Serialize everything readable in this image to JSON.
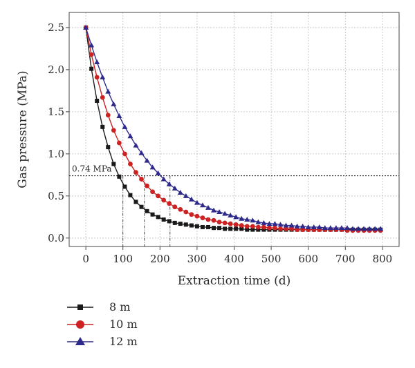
{
  "chart_data": {
    "type": "line",
    "xlabel": "Extraction time (d)",
    "ylabel": "Gas pressure (MPa)",
    "xlim": [
      -45,
      845
    ],
    "ylim": [
      -0.1,
      2.68
    ],
    "xticks": [
      "0",
      "100",
      "200",
      "300",
      "400",
      "500",
      "600",
      "700",
      "800"
    ],
    "yticks": [
      "0.0",
      "0.5",
      "1.0",
      "1.5",
      "2.0",
      "2.5"
    ],
    "grid": true,
    "legend_position": "below",
    "x": [
      0,
      15,
      30,
      45,
      60,
      75,
      90,
      105,
      120,
      135,
      150,
      165,
      180,
      195,
      210,
      225,
      240,
      255,
      270,
      285,
      300,
      315,
      330,
      345,
      360,
      375,
      390,
      405,
      420,
      435,
      450,
      465,
      480,
      495,
      510,
      525,
      540,
      555,
      570,
      585,
      600,
      615,
      630,
      645,
      660,
      675,
      690,
      705,
      720,
      735,
      750,
      765,
      780,
      795
    ],
    "series": [
      {
        "name": "8 m",
        "marker": "square",
        "color": "#1a1a1a",
        "values": [
          2.5,
          2.01,
          1.63,
          1.32,
          1.08,
          0.88,
          0.73,
          0.61,
          0.51,
          0.43,
          0.37,
          0.32,
          0.28,
          0.25,
          0.22,
          0.2,
          0.18,
          0.17,
          0.16,
          0.15,
          0.14,
          0.13,
          0.13,
          0.12,
          0.12,
          0.11,
          0.11,
          0.11,
          0.11,
          0.1,
          0.1,
          0.1,
          0.1,
          0.1,
          0.1,
          0.1,
          0.1,
          0.1,
          0.1,
          0.1,
          0.1,
          0.1,
          0.1,
          0.1,
          0.1,
          0.1,
          0.1,
          0.1,
          0.1,
          0.1,
          0.1,
          0.1,
          0.1,
          0.1
        ]
      },
      {
        "name": "10 m",
        "marker": "circle",
        "color": "#cc2222",
        "values": [
          2.5,
          2.18,
          1.91,
          1.67,
          1.46,
          1.28,
          1.13,
          1.0,
          0.88,
          0.78,
          0.7,
          0.62,
          0.55,
          0.5,
          0.45,
          0.41,
          0.37,
          0.34,
          0.31,
          0.28,
          0.26,
          0.24,
          0.22,
          0.21,
          0.19,
          0.18,
          0.17,
          0.16,
          0.15,
          0.14,
          0.14,
          0.13,
          0.13,
          0.12,
          0.12,
          0.11,
          0.11,
          0.11,
          0.1,
          0.1,
          0.1,
          0.1,
          0.1,
          0.1,
          0.1,
          0.1,
          0.1,
          0.09,
          0.09,
          0.09,
          0.09,
          0.09,
          0.09,
          0.09
        ]
      },
      {
        "name": "12 m",
        "marker": "triangle",
        "color": "#2e2a8c",
        "values": [
          2.5,
          2.29,
          2.09,
          1.91,
          1.74,
          1.59,
          1.45,
          1.32,
          1.21,
          1.1,
          1.01,
          0.92,
          0.84,
          0.77,
          0.7,
          0.64,
          0.59,
          0.54,
          0.5,
          0.46,
          0.42,
          0.39,
          0.36,
          0.33,
          0.31,
          0.29,
          0.27,
          0.25,
          0.23,
          0.22,
          0.21,
          0.19,
          0.18,
          0.17,
          0.17,
          0.16,
          0.15,
          0.15,
          0.14,
          0.14,
          0.13,
          0.13,
          0.13,
          0.12,
          0.12,
          0.12,
          0.12,
          0.12,
          0.11,
          0.11,
          0.11,
          0.11,
          0.11,
          0.11
        ]
      }
    ],
    "threshold": {
      "value": 0.74,
      "label": "0.74 MPa"
    },
    "drop_lines_x": [
      100,
      158,
      227
    ]
  }
}
